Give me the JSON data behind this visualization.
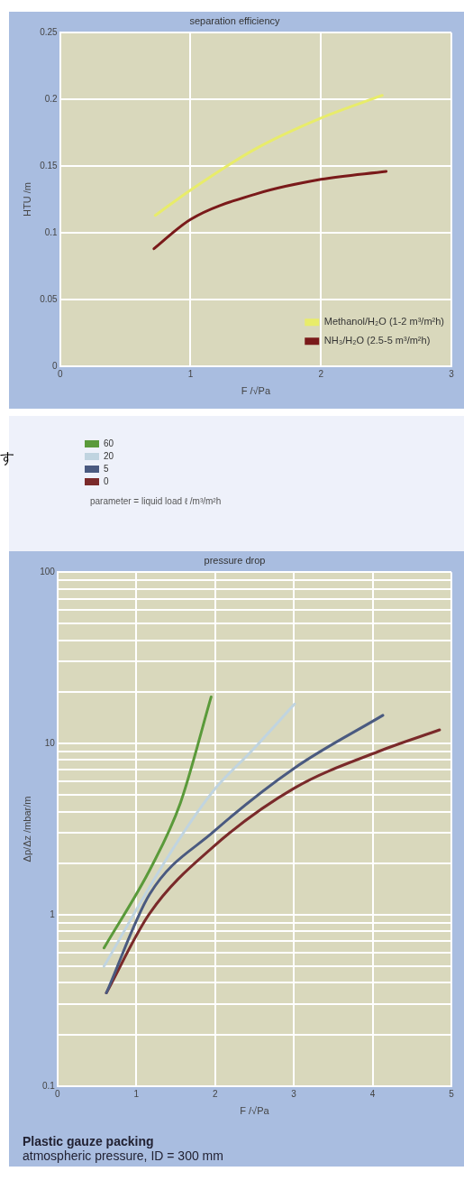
{
  "chart_data": [
    {
      "type": "line",
      "title": "separation efficiency",
      "xlabel": "F /√Pa",
      "ylabel": "HTU /m",
      "xlim": [
        0,
        3
      ],
      "xticks": [
        0,
        1,
        2,
        3
      ],
      "ylim": [
        0,
        0.25
      ],
      "yticks": [
        0,
        0.05,
        0.1,
        0.15,
        0.2,
        0.25
      ],
      "grid": true,
      "legend": "bottom right",
      "line_style": "solid",
      "marker": "none",
      "series": [
        {
          "name": "Methanol/H₂O (1-2 m³/m²h)",
          "color": "#e8ec6a",
          "x": [
            0.73,
            1,
            1.5,
            2,
            2.47
          ],
          "values": [
            0.113,
            0.132,
            0.163,
            0.186,
            0.203
          ]
        },
        {
          "name": "NH₃/H₂O (2.5-5 m³/m²h)",
          "color": "#7a1a1a",
          "x": [
            0.72,
            1,
            1.5,
            2,
            2.5
          ],
          "values": [
            0.088,
            0.11,
            0.129,
            0.14,
            0.146
          ]
        }
      ]
    },
    {
      "type": "line",
      "title": "pressure drop",
      "xlabel": "F /√Pa",
      "ylabel": "Δp/Δz /mbar/m",
      "log": "y",
      "xlim": [
        0,
        5
      ],
      "xticks": [
        0,
        1,
        2,
        3,
        4,
        5
      ],
      "ylim": [
        0.1,
        100
      ],
      "yticks": [
        0.1,
        {
          "value": 0.2,
          "label": null
        },
        {
          "value": 0.3,
          "label": null
        },
        {
          "value": 0.4,
          "label": null
        },
        {
          "value": 0.5,
          "label": null
        },
        {
          "value": 0.6,
          "label": null
        },
        {
          "value": 0.7,
          "label": null
        },
        {
          "value": 0.8,
          "label": null
        },
        {
          "value": 0.9,
          "label": null
        },
        1,
        {
          "value": 2,
          "label": null
        },
        {
          "value": 3,
          "label": null
        },
        {
          "value": 4,
          "label": null
        },
        {
          "value": 5,
          "label": null
        },
        {
          "value": 6,
          "label": null
        },
        {
          "value": 7,
          "label": null
        },
        {
          "value": 8,
          "label": null
        },
        {
          "value": 9,
          "label": null
        },
        10,
        {
          "value": 20,
          "label": null
        },
        {
          "value": 30,
          "label": null
        },
        {
          "value": 40,
          "label": null
        },
        {
          "value": 50,
          "label": null
        },
        {
          "value": 60,
          "label": null
        },
        {
          "value": 70,
          "label": null
        },
        {
          "value": 80,
          "label": null
        },
        {
          "value": 90,
          "label": null
        },
        100
      ],
      "grid": true,
      "legend": "top",
      "legend_title": "parameter = liquid load ℓ /m³/m²h",
      "line_style": "solid",
      "marker": "none",
      "annotations": [
        "す",
        "Plastic gauze packing",
        "atmospheric pressure, ID = 300 mm"
      ],
      "series": [
        {
          "name": "60",
          "color": "#5a9a3a",
          "x": [
            0.59,
            1.19,
            1.56,
            1.95
          ],
          "values": [
            0.64,
            1.9,
            4.5,
            18.7
          ]
        },
        {
          "name": "20",
          "color": "#c0d4e0",
          "x": [
            0.59,
            1.37,
            1.98,
            2.46,
            3.01
          ],
          "values": [
            0.5,
            2.07,
            5.3,
            9.0,
            17
          ]
        },
        {
          "name": "5",
          "color": "#4a5a80",
          "x": [
            0.62,
            1.17,
            1.98,
            3.01,
            4.13
          ],
          "values": [
            0.35,
            1.32,
            3.05,
            7.2,
            14.6
          ]
        },
        {
          "name": "0",
          "color": "#7a2a2a",
          "x": [
            0.62,
            1.17,
            1.98,
            3.01,
            4.08,
            4.85
          ],
          "values": [
            0.35,
            1.02,
            2.5,
            5.5,
            9.0,
            12
          ]
        }
      ]
    }
  ]
}
